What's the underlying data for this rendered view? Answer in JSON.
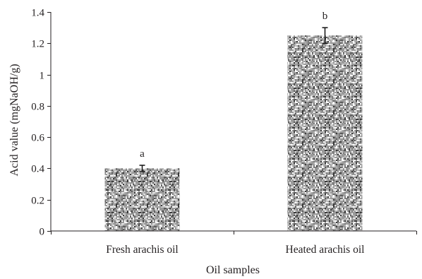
{
  "chart_data": {
    "type": "bar",
    "categories": [
      "Fresh arachis oil",
      "Heated arachis oil"
    ],
    "values": [
      0.4,
      1.25
    ],
    "error": [
      0.02,
      0.05
    ],
    "significance_labels": [
      "a",
      "b"
    ],
    "xlabel": "Oil samples",
    "ylabel": "Acid value (mgNaOH/g)",
    "ylim": [
      0,
      1.4
    ],
    "yticks": [
      "0",
      "0.2",
      "0.4",
      "0.6",
      "0.8",
      "1",
      "1.2",
      "1.4"
    ],
    "ytick_values": [
      0,
      0.2,
      0.4,
      0.6,
      0.8,
      1.0,
      1.2,
      1.4
    ],
    "grid": false,
    "legend": "none",
    "bar_fill": "speckled gray"
  }
}
